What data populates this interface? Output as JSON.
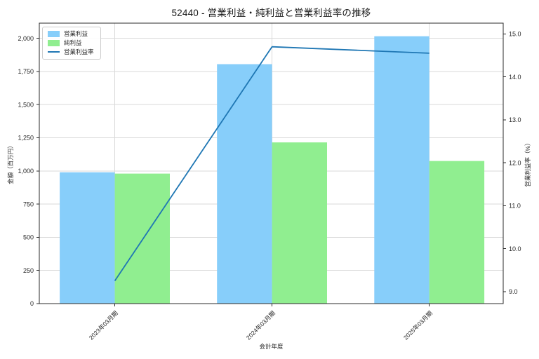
{
  "chart_data": {
    "type": "bar+line",
    "title": "52440 - 営業利益・純利益と営業利益率の推移",
    "categories": [
      "2023年03月期",
      "2024年03月期",
      "2025年03月期"
    ],
    "series": [
      {
        "key": "operating-profit",
        "name": "営業利益",
        "type": "bar",
        "axis": "left",
        "color": "#87CEFA",
        "values": [
          990,
          1805,
          2015
        ]
      },
      {
        "key": "net-profit",
        "name": "純利益",
        "type": "bar",
        "axis": "left",
        "color": "#90EE90",
        "values": [
          980,
          1215,
          1075
        ]
      },
      {
        "key": "operating-margin",
        "name": "営業利益率",
        "type": "line",
        "axis": "right",
        "color": "#1f77b4",
        "values": [
          9.25,
          14.7,
          14.55
        ]
      }
    ],
    "xlabel": "会計年度",
    "ylabel_left": "金額（百万円）",
    "ylabel_right": "営業利益率（%）",
    "left_axis": {
      "lim": [
        0,
        2114
      ],
      "ticks": [
        {
          "v": 0,
          "label": "0"
        },
        {
          "v": 250,
          "label": "250"
        },
        {
          "v": 500,
          "label": "500"
        },
        {
          "v": 750,
          "label": "750"
        },
        {
          "v": 1000,
          "label": "1,000"
        },
        {
          "v": 1250,
          "label": "1,250"
        },
        {
          "v": 1500,
          "label": "1,500"
        },
        {
          "v": 1750,
          "label": "1,750"
        },
        {
          "v": 2000,
          "label": "2,000"
        }
      ]
    },
    "right_axis": {
      "lim": [
        8.72,
        15.25
      ],
      "ticks": [
        {
          "v": 9,
          "label": "9.0"
        },
        {
          "v": 10,
          "label": "10.0"
        },
        {
          "v": 11,
          "label": "11.0"
        },
        {
          "v": 12,
          "label": "12.0"
        },
        {
          "v": 13,
          "label": "13.0"
        },
        {
          "v": 14,
          "label": "14.0"
        },
        {
          "v": 15,
          "label": "15.0"
        }
      ]
    },
    "xlim": [
      -0.48,
      2.47
    ],
    "bar_width": 0.35,
    "grid": true,
    "legend_position": "upper left",
    "colors": {
      "grid": "#d9d9d9",
      "spine": "#2b2b2b",
      "text": "#262626",
      "background": "#ffffff"
    }
  }
}
